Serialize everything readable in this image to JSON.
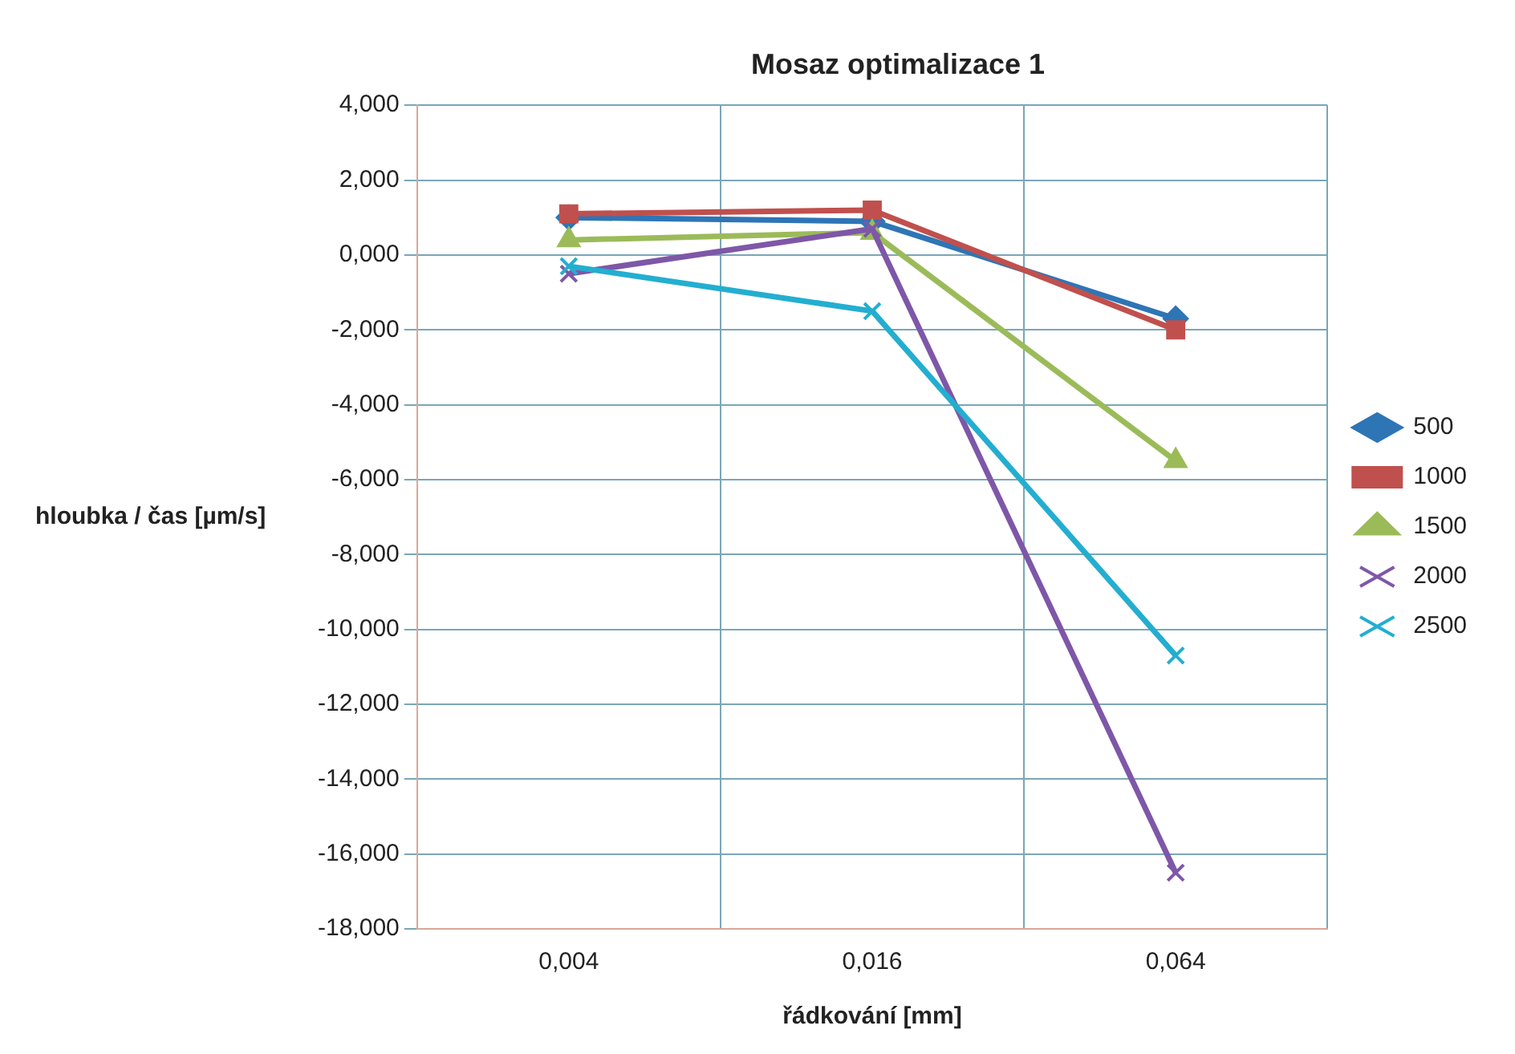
{
  "chart_data": {
    "type": "line",
    "title": "Mosaz optimalizace 1",
    "xlabel": "řádkování [mm]",
    "ylabel": "hloubka / čas [µm/s]",
    "categories": [
      "0,004",
      "0,016",
      "0,064"
    ],
    "series": [
      {
        "name": "500",
        "color": "#2e75b6",
        "marker": "diamond",
        "values": [
          1.0,
          0.9,
          -1.7
        ]
      },
      {
        "name": "1000",
        "color": "#c0504d",
        "marker": "square",
        "values": [
          1.1,
          1.2,
          -2.0
        ]
      },
      {
        "name": "1500",
        "color": "#9bbb59",
        "marker": "triangle",
        "values": [
          0.4,
          0.6,
          -5.5
        ]
      },
      {
        "name": "2000",
        "color": "#7e57a8",
        "marker": "cross",
        "values": [
          -0.5,
          0.7,
          -16.5
        ]
      },
      {
        "name": "2500",
        "color": "#23aed0",
        "marker": "cross",
        "values": [
          -0.3,
          -1.5,
          -10.7
        ]
      }
    ],
    "ylim": [
      -18,
      4
    ],
    "yticks": [
      {
        "value": -18,
        "label": "-18,000"
      },
      {
        "value": -16,
        "label": "-16,000"
      },
      {
        "value": -14,
        "label": "-14,000"
      },
      {
        "value": -12,
        "label": "-12,000"
      },
      {
        "value": -10,
        "label": "-10,000"
      },
      {
        "value": -8,
        "label": "-8,000"
      },
      {
        "value": -6,
        "label": "-6,000"
      },
      {
        "value": -4,
        "label": "-4,000"
      },
      {
        "value": -2,
        "label": "-2,000"
      },
      {
        "value": 0,
        "label": "0,000"
      },
      {
        "value": 2,
        "label": "2,000"
      },
      {
        "value": 4,
        "label": "4,000"
      }
    ],
    "grid": true,
    "legend": "right",
    "line_style": "solid"
  }
}
